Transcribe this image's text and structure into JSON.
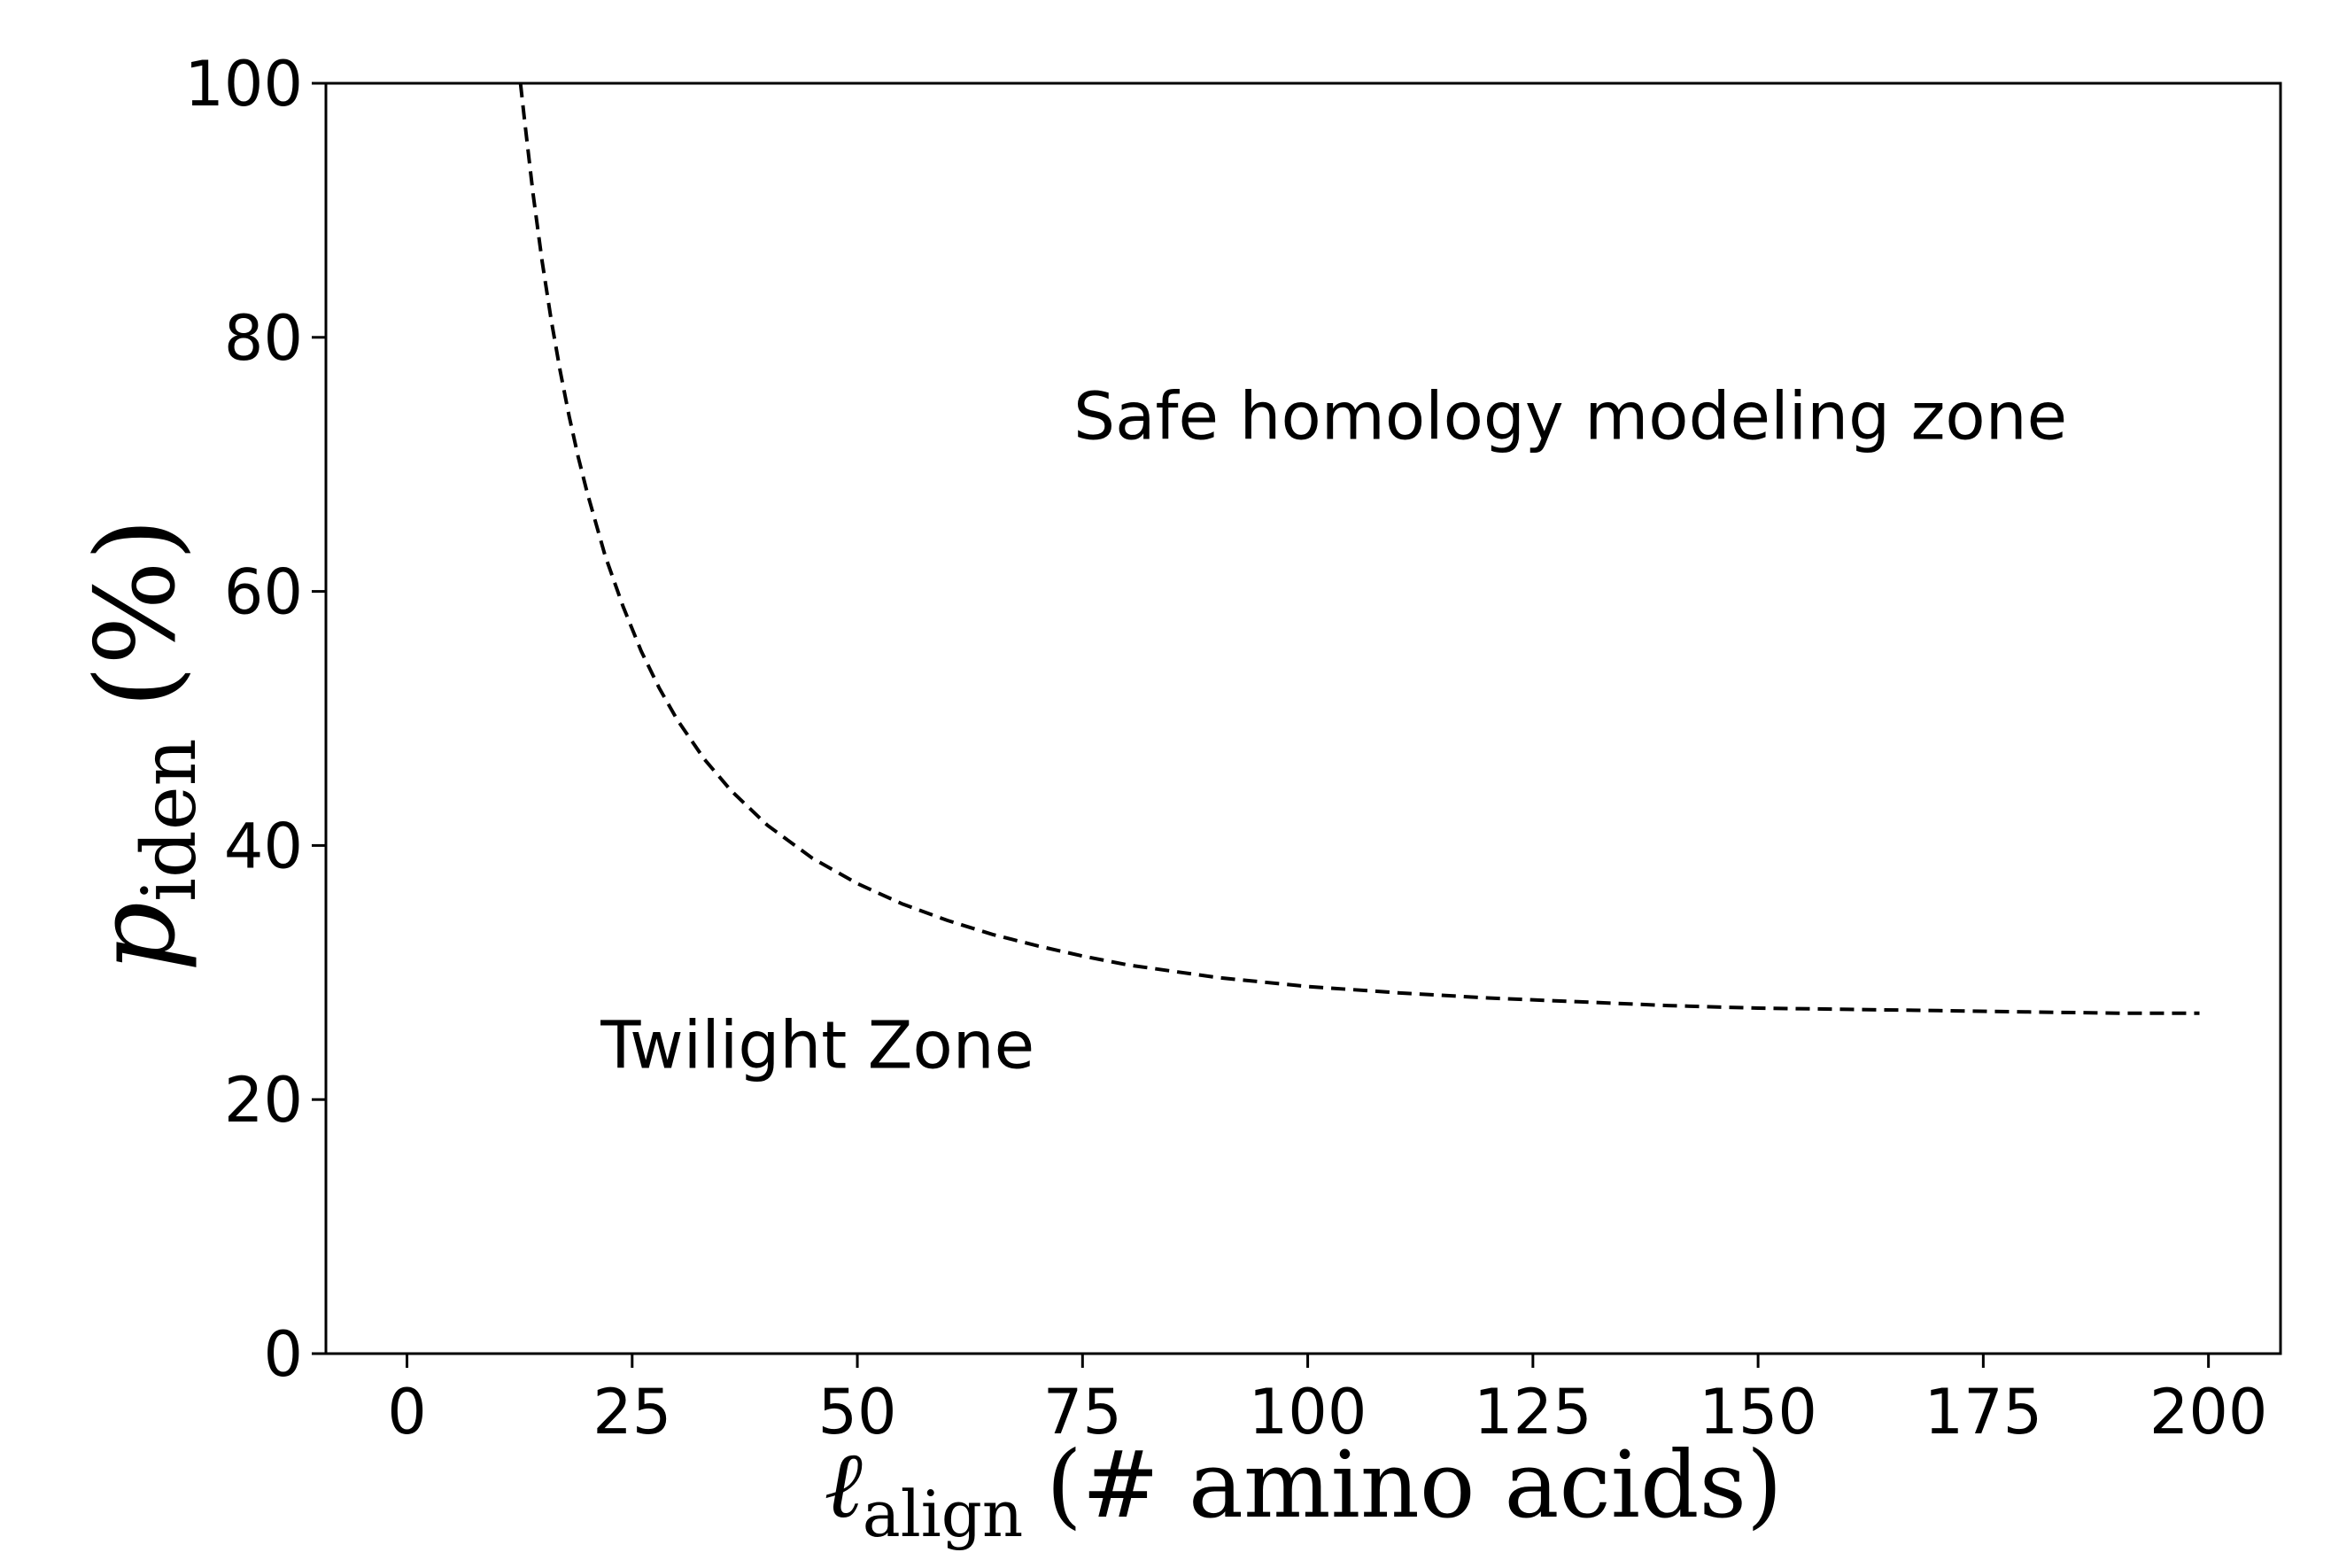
{
  "chart_data": {
    "type": "line",
    "xlabel": {
      "symbol": "ℓ",
      "subscript": "align",
      "text": "(# amino acids)"
    },
    "ylabel": {
      "symbol": "p",
      "subscript": "iden",
      "text": "(%)"
    },
    "xlim": [
      -9,
      208
    ],
    "ylim": [
      0,
      100
    ],
    "xticks": [
      0,
      25,
      50,
      75,
      100,
      125,
      150,
      175,
      200
    ],
    "yticks": [
      0,
      20,
      40,
      60,
      80,
      100
    ],
    "grid": false,
    "legend": "none",
    "series": [
      {
        "style": "dashed",
        "color": "#000000",
        "x": [
          12.6,
          13,
          14,
          15,
          16,
          17,
          18,
          19,
          20,
          22,
          24,
          26,
          28,
          30,
          33,
          36,
          40,
          45,
          50,
          55,
          60,
          65,
          70,
          75,
          80,
          90,
          100,
          110,
          120,
          130,
          140,
          150,
          160,
          170,
          180,
          190,
          199
        ],
        "y": [
          100,
          97.4,
          91.3,
          86.0,
          81.4,
          77.4,
          73.8,
          70.6,
          67.8,
          62.8,
          58.8,
          55.3,
          52.4,
          49.9,
          46.8,
          44.3,
          41.6,
          39.0,
          37.0,
          35.4,
          34.1,
          33.0,
          32.1,
          31.3,
          30.6,
          29.6,
          28.9,
          28.4,
          28.0,
          27.7,
          27.4,
          27.2,
          27.1,
          27.0,
          26.9,
          26.8,
          26.8
        ]
      }
    ],
    "annotations": [
      {
        "text": "Safe homology modeling zone",
        "x": 74,
        "y": 72
      },
      {
        "text": "Twilight Zone",
        "x": 21.5,
        "y": 22.5
      }
    ]
  },
  "colors": {
    "line": "#000000",
    "frame": "#000000",
    "background": "#ffffff"
  }
}
